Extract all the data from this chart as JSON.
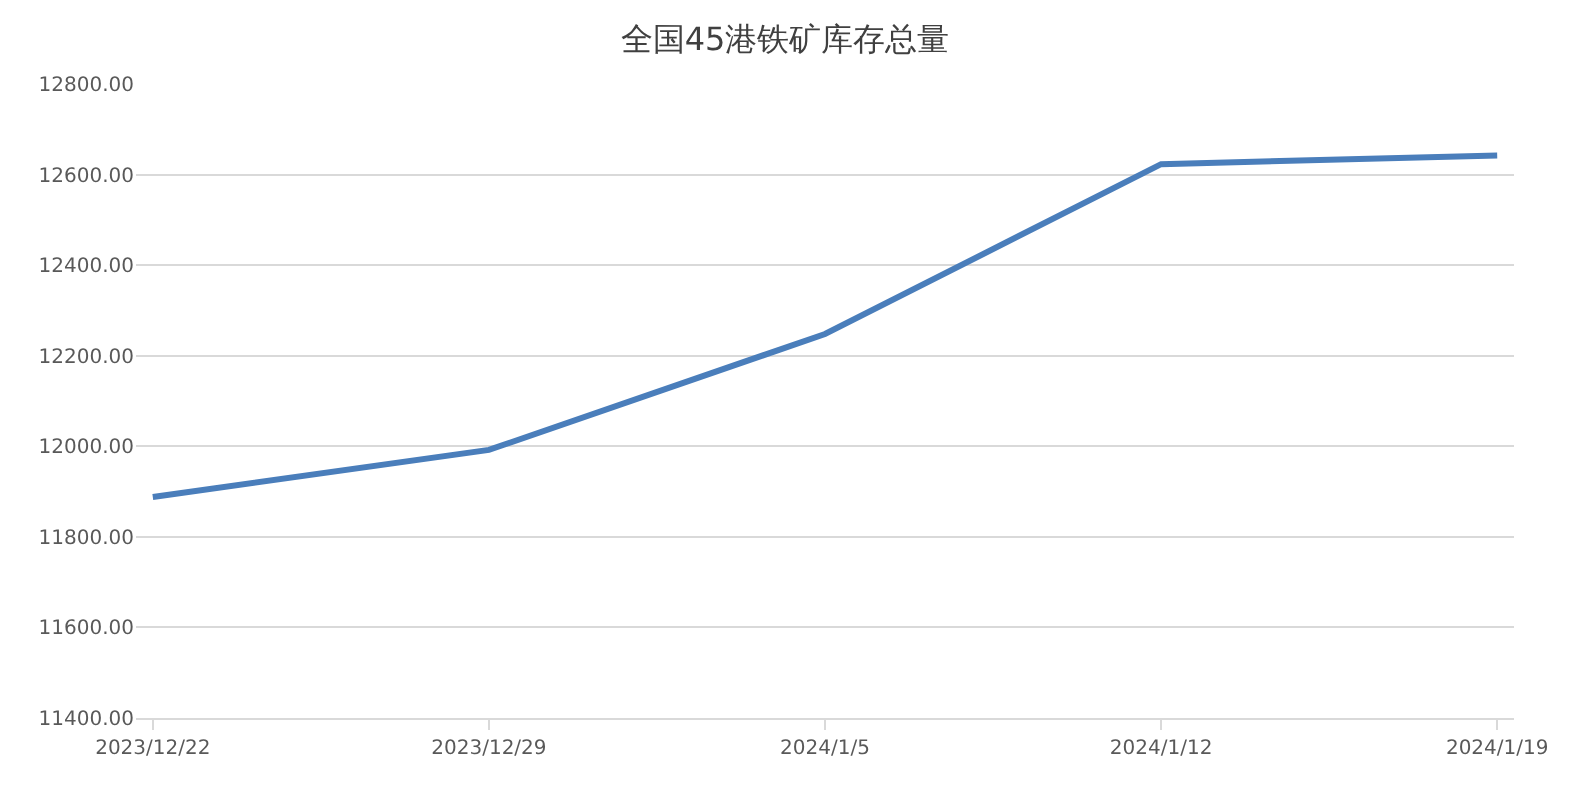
{
  "chart_data": {
    "type": "line",
    "title": "全国45港铁矿库存总量",
    "categories": [
      "2023/12/22",
      "2023/12/29",
      "2024/1/5",
      "2024/1/12",
      "2024/1/19"
    ],
    "series": [
      {
        "color": "#4a7ebb",
        "values": [
          11888,
          11992,
          12248,
          12623,
          12642
        ]
      }
    ],
    "ylim": [
      11400,
      12800
    ],
    "yticks": [
      {
        "value": 11400,
        "label": "11400.00"
      },
      {
        "value": 11600,
        "label": "11600.00"
      },
      {
        "value": 11800,
        "label": "11800.00"
      },
      {
        "value": 12000,
        "label": "12000.00"
      },
      {
        "value": 12200,
        "label": "12200.00"
      },
      {
        "value": 12400,
        "label": "12400.00"
      },
      {
        "value": 12600,
        "label": "12600.00"
      },
      {
        "value": 12800,
        "label": "12800.00"
      }
    ],
    "grid": "y",
    "legend": false,
    "marker": "none",
    "line_style": "solid"
  }
}
